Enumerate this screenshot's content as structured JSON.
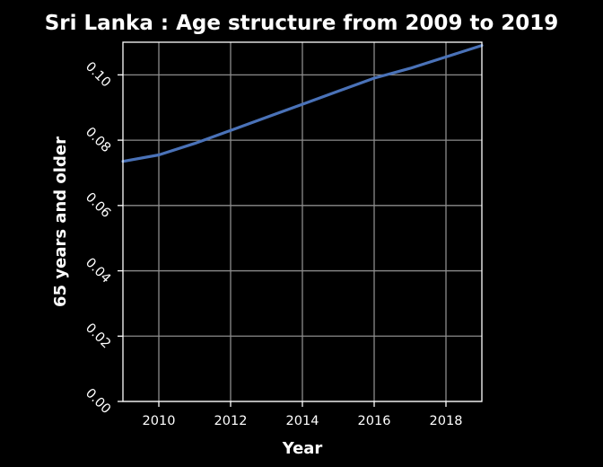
{
  "chart_data": {
    "type": "line",
    "title": "Sri Lanka : Age structure from 2009 to 2019",
    "xlabel": "Year",
    "ylabel": "65 years and older",
    "xlim": [
      2009,
      2019
    ],
    "ylim": [
      0,
      0.11
    ],
    "x_ticks": [
      2010,
      2012,
      2014,
      2016,
      2018
    ],
    "y_ticks": [
      0.0,
      0.02,
      0.04,
      0.06,
      0.08,
      0.1
    ],
    "y_tick_labels": [
      "0.00",
      "0.02",
      "0.04",
      "0.06",
      "0.08",
      "0.10"
    ],
    "grid": true,
    "legend": "none",
    "series": [
      {
        "color": "#4a72b8",
        "x": [
          2009,
          2010,
          2011,
          2012,
          2013,
          2014,
          2015,
          2016,
          2017,
          2018,
          2019
        ],
        "y": [
          0.0735,
          0.0755,
          0.079,
          0.083,
          0.087,
          0.091,
          0.095,
          0.099,
          0.102,
          0.1055,
          0.109
        ]
      }
    ]
  }
}
